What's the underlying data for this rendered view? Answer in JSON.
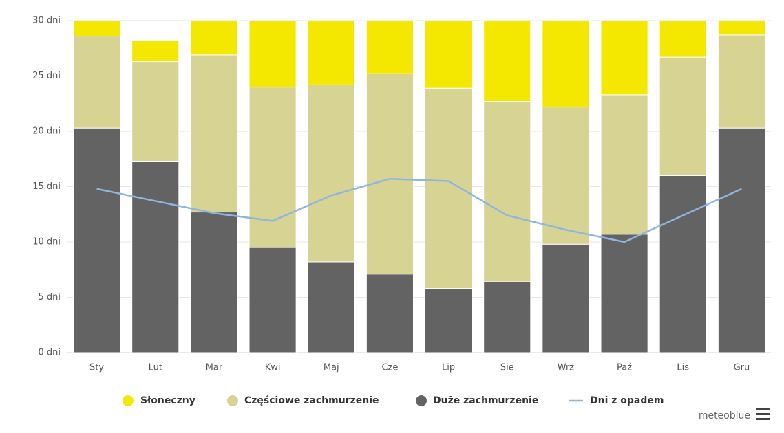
{
  "chart_data": {
    "type": "stacked-bar-line",
    "categories": [
      "Sty",
      "Lut",
      "Mar",
      "Kwi",
      "Maj",
      "Cze",
      "Lip",
      "Sie",
      "Wrz",
      "Paź",
      "Lis",
      "Gru"
    ],
    "series": [
      {
        "name": "Duże zachmurzenie",
        "color": "#636363",
        "kind": "bar",
        "values": [
          20.3,
          17.3,
          12.7,
          9.5,
          8.2,
          7.1,
          5.8,
          6.4,
          9.8,
          10.7,
          16.0,
          20.3
        ]
      },
      {
        "name": "Częściowe zachmurzenie",
        "color": "#d6d393",
        "kind": "bar",
        "values": [
          8.3,
          9.0,
          14.2,
          14.5,
          16.0,
          18.1,
          18.1,
          16.3,
          12.4,
          12.6,
          10.7,
          8.4
        ]
      },
      {
        "name": "Słoneczny",
        "color": "#f5e800",
        "kind": "bar",
        "values": [
          2.4,
          1.9,
          4.1,
          6.0,
          6.8,
          4.8,
          7.1,
          8.3,
          7.8,
          7.7,
          3.3,
          2.3
        ]
      },
      {
        "name": "Dni z opadem",
        "color": "#8db6e0",
        "kind": "line",
        "values": [
          14.8,
          13.7,
          12.6,
          11.9,
          14.2,
          15.7,
          15.5,
          12.4,
          11.1,
          10.0,
          12.4,
          14.8
        ]
      }
    ],
    "legend_order": [
      2,
      1,
      0,
      3
    ],
    "ylim": [
      0,
      30
    ],
    "yticks": [
      {
        "value": 0,
        "label": "0 dni"
      },
      {
        "value": 5,
        "label": "5 dni"
      },
      {
        "value": 10,
        "label": "10 dni"
      },
      {
        "value": 15,
        "label": "15 dni"
      },
      {
        "value": 20,
        "label": "20 dni"
      },
      {
        "value": 25,
        "label": "25 dni"
      },
      {
        "value": 30,
        "label": "30 dni"
      }
    ],
    "grid": true,
    "credit": "meteoblue"
  }
}
